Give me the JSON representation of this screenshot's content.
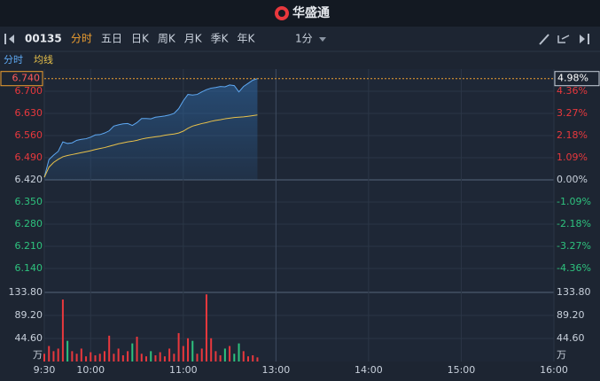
{
  "app": {
    "title": "华盛通",
    "code": "00135",
    "tabs": [
      "分时",
      "五日",
      "日K",
      "周K",
      "月K",
      "季K",
      "年K"
    ],
    "active_tab_index": 0,
    "interval": "1分"
  },
  "chart_data": {
    "type": "line",
    "x": [
      0,
      3,
      6,
      9,
      12,
      15,
      18,
      21,
      24,
      27,
      30,
      33,
      36,
      39,
      42,
      45,
      48,
      51,
      54,
      57,
      60,
      63,
      66,
      69,
      72,
      75,
      78,
      81,
      84,
      87,
      90,
      93,
      96,
      99,
      102,
      105,
      108,
      111,
      114,
      117,
      120,
      123,
      126,
      129,
      132,
      135,
      138
    ],
    "xlim": [
      0,
      330
    ],
    "xticks": [
      {
        "value": 0,
        "label": "9:30"
      },
      {
        "value": 30,
        "label": "10:00"
      },
      {
        "value": 90,
        "label": "11:00"
      },
      {
        "value": 150,
        "label": "13:00"
      },
      {
        "value": 210,
        "label": "14:00"
      },
      {
        "value": 270,
        "label": "15:00"
      },
      {
        "value": 330,
        "label": "16:00"
      }
    ],
    "series": [
      {
        "name": "分时",
        "color": "#5ea8f2",
        "values": [
          6.428,
          6.484,
          6.498,
          6.51,
          6.54,
          6.535,
          6.537,
          6.545,
          6.548,
          6.55,
          6.555,
          6.562,
          6.563,
          6.568,
          6.575,
          6.59,
          6.594,
          6.597,
          6.598,
          6.592,
          6.601,
          6.614,
          6.614,
          6.613,
          6.618,
          6.62,
          6.622,
          6.625,
          6.63,
          6.645,
          6.67,
          6.69,
          6.688,
          6.69,
          6.698,
          6.705,
          6.71,
          6.712,
          6.715,
          6.714,
          6.72,
          6.718,
          6.698,
          6.715,
          6.725,
          6.735,
          6.74
        ]
      },
      {
        "name": "均线",
        "color": "#e8c14a",
        "values": [
          6.428,
          6.46,
          6.475,
          6.485,
          6.493,
          6.497,
          6.5,
          6.503,
          6.506,
          6.509,
          6.512,
          6.516,
          6.519,
          6.522,
          6.526,
          6.53,
          6.534,
          6.537,
          6.54,
          6.542,
          6.545,
          6.549,
          6.552,
          6.554,
          6.556,
          6.558,
          6.561,
          6.563,
          6.565,
          6.568,
          6.574,
          6.583,
          6.59,
          6.594,
          6.598,
          6.601,
          6.605,
          6.608,
          6.61,
          6.613,
          6.615,
          6.617,
          6.618,
          6.619,
          6.621,
          6.623,
          6.625
        ]
      }
    ],
    "ylim": [
      6.07,
      6.77
    ],
    "yticks": [
      {
        "value": 6.7,
        "label": "6.700"
      },
      {
        "value": 6.63,
        "label": "6.630"
      },
      {
        "value": 6.56,
        "label": "6.560"
      },
      {
        "value": 6.49,
        "label": "6.490"
      },
      {
        "value": 6.42,
        "label": "6.420"
      },
      {
        "value": 6.35,
        "label": "6.350"
      },
      {
        "value": 6.28,
        "label": "6.280"
      },
      {
        "value": 6.21,
        "label": "6.210"
      },
      {
        "value": 6.14,
        "label": "6.140"
      }
    ],
    "y2lim": [
      -5.45,
      5.45
    ],
    "y2ticks": [
      {
        "value": 4.36,
        "label": "4.36%"
      },
      {
        "value": 3.27,
        "label": "3.27%"
      },
      {
        "value": 2.18,
        "label": "2.18%"
      },
      {
        "value": 1.09,
        "label": "1.09%"
      },
      {
        "value": 0,
        "label": "0.00%"
      },
      {
        "value": -1.09,
        "label": "-1.09%"
      },
      {
        "value": -2.18,
        "label": "-2.18%"
      },
      {
        "value": -3.27,
        "label": "-3.27%"
      },
      {
        "value": -4.36,
        "label": "-4.36%"
      }
    ],
    "last_price": {
      "value": 6.74,
      "label": "6.740",
      "pct": {
        "value": 4.98,
        "label": "4.98%"
      }
    },
    "grid": true,
    "volume": {
      "unit": "万",
      "values": [
        15,
        30,
        20,
        25,
        120,
        40,
        20,
        15,
        25,
        10,
        18,
        12,
        15,
        20,
        50,
        15,
        25,
        12,
        20,
        35,
        48,
        15,
        10,
        20,
        12,
        18,
        10,
        25,
        15,
        55,
        30,
        45,
        40,
        15,
        25,
        130,
        45,
        20,
        12,
        25,
        30,
        15,
        35,
        20,
        10,
        12,
        8
      ],
      "up_color": "#e8383d",
      "down_color": "#2ec27e",
      "ylim": [
        0,
        133.8
      ],
      "yticks": [
        {
          "value": 133.8,
          "label": "133.80"
        },
        {
          "value": 89.2,
          "label": "89.20"
        },
        {
          "value": 44.6,
          "label": "44.60"
        }
      ]
    }
  }
}
